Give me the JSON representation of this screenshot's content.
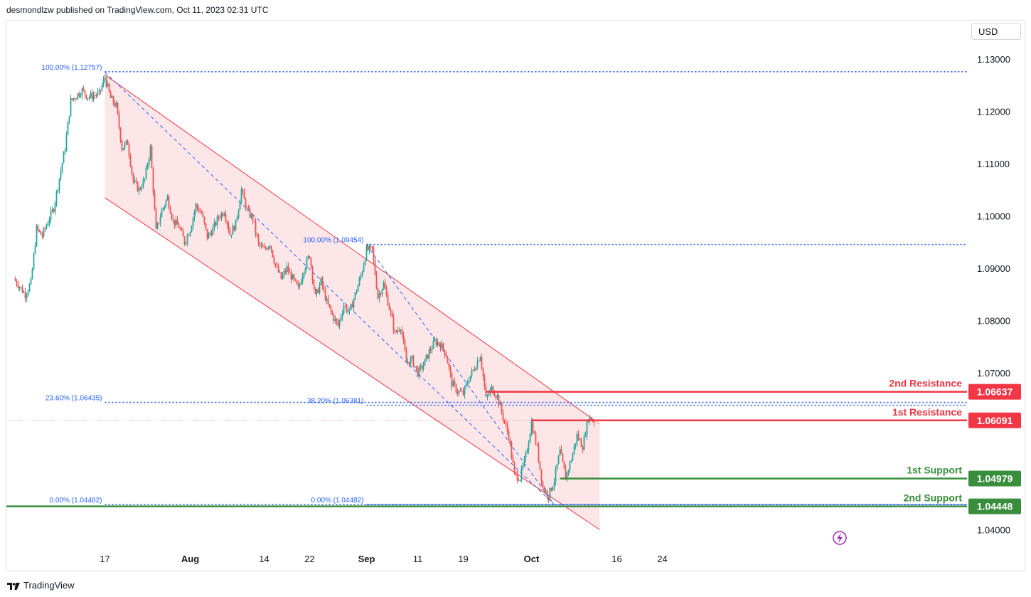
{
  "header": {
    "publish_text": "desmondlzw published on TradingView.com, Oct 11, 2023 02:31 UTC"
  },
  "currency_button": {
    "label": "USD"
  },
  "footer": {
    "brand": "TradingView"
  },
  "colors": {
    "up": "#26a69a",
    "down": "#ef5350",
    "channel_fill": "#fde2e4",
    "channel_line": "#f23645",
    "fib": "#2962ff",
    "resistance": "#f23645",
    "support": "#388e3c"
  },
  "chart_data": {
    "type": "candlestick",
    "y_axis": {
      "ylim": [
        1.0375,
        1.1335
      ],
      "ticks": [
        "1.13000",
        "1.12000",
        "1.11000",
        "1.10000",
        "1.09000",
        "1.08000",
        "1.07000",
        "1.04000"
      ],
      "tick_values": [
        1.13,
        1.12,
        1.11,
        1.1,
        1.09,
        1.08,
        1.07,
        1.04
      ]
    },
    "x_axis": {
      "ticks": [
        "17",
        "Aug",
        "14",
        "22",
        "Sep",
        "11",
        "19",
        "Oct",
        "16",
        "24"
      ],
      "tick_days": [
        17,
        32,
        45,
        53,
        63,
        72,
        80,
        92,
        107,
        115
      ],
      "bold_ticks": [
        "Aug",
        "Sep",
        "Oct"
      ]
    },
    "day_zero": "2023-07-01",
    "close_path": [
      [
        1,
        1.088
      ],
      [
        3,
        1.085
      ],
      [
        4,
        1.0872
      ],
      [
        5,
        1.0975
      ],
      [
        6,
        1.0962
      ],
      [
        7,
        1.099
      ],
      [
        8,
        1.1015
      ],
      [
        10,
        1.113
      ],
      [
        11,
        1.122
      ],
      [
        13,
        1.124
      ],
      [
        14,
        1.1228
      ],
      [
        16,
        1.1233
      ],
      [
        17,
        1.1265
      ],
      [
        18,
        1.1225
      ],
      [
        19,
        1.121
      ],
      [
        20,
        1.113
      ],
      [
        21,
        1.114
      ],
      [
        22,
        1.1065
      ],
      [
        23,
        1.105
      ],
      [
        24,
        1.107
      ],
      [
        25,
        1.113
      ],
      [
        26,
        1.097
      ],
      [
        27,
        1.101
      ],
      [
        28,
        1.1035
      ],
      [
        29,
        1.099
      ],
      [
        30,
        1.098
      ],
      [
        31,
        1.095
      ],
      [
        32,
        1.0975
      ],
      [
        33,
        1.102
      ],
      [
        34,
        1.1005
      ],
      [
        35,
        1.096
      ],
      [
        36,
        1.0975
      ],
      [
        37,
        1.0998
      ],
      [
        38,
        1.101
      ],
      [
        39,
        1.0965
      ],
      [
        40,
        1.0985
      ],
      [
        41,
        1.105
      ],
      [
        42,
        1.101
      ],
      [
        43,
        1.0995
      ],
      [
        44,
        1.0945
      ],
      [
        45,
        1.0935
      ],
      [
        46,
        1.0948
      ],
      [
        47,
        1.0905
      ],
      [
        48,
        1.088
      ],
      [
        49,
        1.09
      ],
      [
        50,
        1.088
      ],
      [
        51,
        1.086
      ],
      [
        52,
        1.09
      ],
      [
        53,
        1.0925
      ],
      [
        54,
        1.0845
      ],
      [
        55,
        1.0875
      ],
      [
        56,
        1.0835
      ],
      [
        57,
        1.081
      ],
      [
        58,
        1.079
      ],
      [
        59,
        1.083
      ],
      [
        60,
        1.0815
      ],
      [
        61,
        1.085
      ],
      [
        62,
        1.0885
      ],
      [
        63,
        1.0935
      ],
      [
        64,
        1.0935
      ],
      [
        65,
        1.0845
      ],
      [
        66,
        1.087
      ],
      [
        67,
        1.0825
      ],
      [
        68,
        1.0775
      ],
      [
        69,
        1.079
      ],
      [
        70,
        1.072
      ],
      [
        71,
        1.0725
      ],
      [
        72,
        1.07
      ],
      [
        73,
        1.0715
      ],
      [
        74,
        1.074
      ],
      [
        75,
        1.076
      ],
      [
        76,
        1.0755
      ],
      [
        77,
        1.0735
      ],
      [
        78,
        1.068
      ],
      [
        79,
        1.0665
      ],
      [
        80,
        1.066
      ],
      [
        81,
        1.069
      ],
      [
        82,
        1.071
      ],
      [
        83,
        1.0735
      ],
      [
        84,
        1.065
      ],
      [
        85,
        1.067
      ],
      [
        86,
        1.0655
      ],
      [
        87,
        1.0615
      ],
      [
        88,
        1.058
      ],
      [
        89,
        1.0505
      ],
      [
        90,
        1.05
      ],
      [
        91,
        1.054
      ],
      [
        92,
        1.0605
      ],
      [
        93,
        1.0555
      ],
      [
        94,
        1.048
      ],
      [
        95,
        1.0465
      ],
      [
        96,
        1.0495
      ],
      [
        97,
        1.055
      ],
      [
        98,
        1.05
      ],
      [
        99,
        1.0535
      ],
      [
        100,
        1.058
      ],
      [
        101,
        1.056
      ],
      [
        102,
        1.0615
      ],
      [
        103,
        1.0608
      ]
    ],
    "channel": {
      "upper": [
        [
          17,
          1.127
        ],
        [
          103,
          1.061
        ]
      ],
      "lower": [
        [
          17,
          1.1035
        ],
        [
          104,
          1.04
        ]
      ],
      "shade_until_day": 104
    },
    "fib_levels": [
      {
        "label": "100.00% (1.12757)",
        "value": 1.12757,
        "from_day": 17
      },
      {
        "label": "100.00% (1.09454)",
        "value": 1.09454,
        "from_day": 63
      },
      {
        "label": "23.60% (1.06435)",
        "value": 1.06435,
        "from_day": 17
      },
      {
        "label": "38.20% (1.06381)",
        "value": 1.06381,
        "from_day": 63
      },
      {
        "label": "0.00% (1.04482)",
        "value": 1.04482,
        "from_day": 17
      },
      {
        "label": "0.00% (1.04482)",
        "value": 1.04482,
        "from_day": 63
      }
    ],
    "fib_diagonals": [
      [
        [
          17,
          1.1275
        ],
        [
          96,
          1.0448
        ]
      ],
      [
        [
          63,
          1.0945
        ],
        [
          96,
          1.0448
        ]
      ]
    ],
    "levels": [
      {
        "name": "2nd Resistance",
        "value": 1.06637,
        "badge": "1.06637",
        "kind": "resistance",
        "from_day": 84
      },
      {
        "name": "1st Resistance",
        "value": 1.06091,
        "badge": "1.06091",
        "kind": "resistance",
        "from_day": 92
      },
      {
        "name": "1st Support",
        "value": 1.04979,
        "badge": "1.04979",
        "kind": "support",
        "from_day": 97
      },
      {
        "name": "2nd Support",
        "value": 1.04448,
        "badge": "1.04448",
        "kind": "support",
        "from_day": 0
      }
    ],
    "last_price": 1.06091,
    "grid": false
  }
}
